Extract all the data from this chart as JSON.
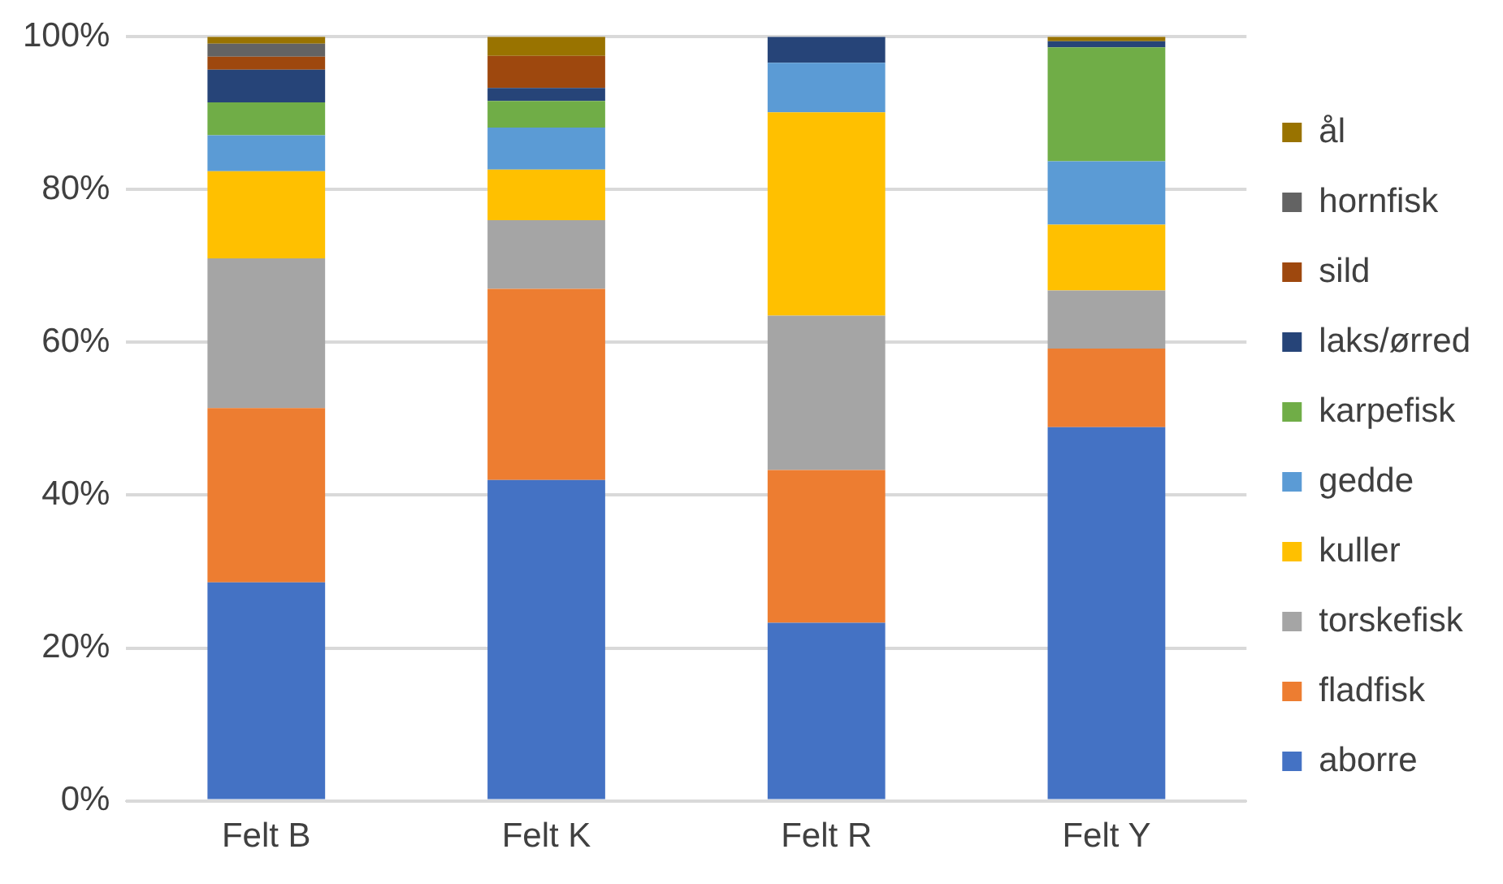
{
  "chart_data": {
    "type": "bar",
    "stacked": true,
    "categories": [
      "Felt B",
      "Felt K",
      "Felt R",
      "Felt Y"
    ],
    "series": [
      {
        "name": "aborre",
        "color": "#4472c4",
        "values": [
          28.6,
          42,
          23.3,
          48.9
        ]
      },
      {
        "name": "fladfisk",
        "color": "#ed7d31",
        "values": [
          22.8,
          25,
          20,
          10.3
        ]
      },
      {
        "name": "torskefisk",
        "color": "#a5a5a5",
        "values": [
          19.6,
          9,
          20.2,
          7.6
        ]
      },
      {
        "name": "kuller",
        "color": "#ffc000",
        "values": [
          11.4,
          6.6,
          26.6,
          8.6
        ]
      },
      {
        "name": "gedde",
        "color": "#5b9bd5",
        "values": [
          4.7,
          5.5,
          6.5,
          8.3
        ]
      },
      {
        "name": "karpefisk",
        "color": "#70ad47",
        "values": [
          4.3,
          3.5,
          0,
          14.9
        ]
      },
      {
        "name": "laks/ørred",
        "color": "#264478",
        "values": [
          4.3,
          1.7,
          3.4,
          0.8
        ]
      },
      {
        "name": "sild",
        "color": "#9e480e",
        "values": [
          1.7,
          4.2,
          0,
          0
        ]
      },
      {
        "name": "hornfisk",
        "color": "#636363",
        "values": [
          1.7,
          0,
          0,
          0
        ]
      },
      {
        "name": "ål",
        "color": "#997300",
        "values": [
          0.9,
          2.5,
          0,
          0.6
        ]
      }
    ],
    "ylim": [
      0,
      100
    ],
    "yticks": [
      {
        "value": 0,
        "label": "0%"
      },
      {
        "value": 20,
        "label": "20%"
      },
      {
        "value": 40,
        "label": "40%"
      },
      {
        "value": 60,
        "label": "60%"
      },
      {
        "value": 80,
        "label": "80%"
      },
      {
        "value": 100,
        "label": "100%"
      }
    ],
    "grid": "y",
    "legend": "right"
  }
}
